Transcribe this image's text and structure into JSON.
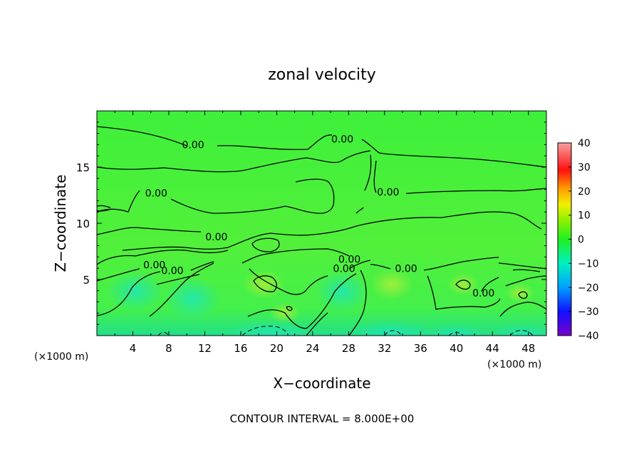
{
  "chart_data": {
    "type": "heatmap",
    "title": "zonal velocity",
    "xlabel": "X−coordinate",
    "ylabel": "Z−coordinate",
    "x_unit_left": "(×1000 m)",
    "x_unit_right": "(×1000 m)",
    "xlim": [
      0,
      50
    ],
    "ylim": [
      0,
      20
    ],
    "x_ticks": [
      4,
      8,
      12,
      16,
      20,
      24,
      28,
      32,
      36,
      40,
      44,
      48
    ],
    "x_tick_labels": [
      "4",
      "8",
      "12",
      "16",
      "20",
      "24",
      "28",
      "32",
      "36",
      "40",
      "44",
      "48"
    ],
    "y_ticks": [
      5,
      10,
      15
    ],
    "y_tick_labels": [
      "5",
      "10",
      "15"
    ],
    "colorbar": {
      "min": -40,
      "max": 40,
      "ticks": [
        40,
        30,
        20,
        10,
        0,
        -10,
        -20,
        -30,
        -40
      ],
      "tick_labels": [
        "40",
        "30",
        "20",
        "10",
        "0",
        "−10",
        "−20",
        "−30",
        "−40"
      ]
    },
    "contour_labels": [
      {
        "text": "0.00",
        "x": 10.7,
        "z": 16.8
      },
      {
        "text": "0.00",
        "x": 27.3,
        "z": 17.3
      },
      {
        "text": "0.00",
        "x": 6.6,
        "z": 12.5
      },
      {
        "text": "0.00",
        "x": 32.4,
        "z": 12.6
      },
      {
        "text": "0.00",
        "x": 13.3,
        "z": 8.6
      },
      {
        "text": "0.00",
        "x": 6.4,
        "z": 6.1
      },
      {
        "text": "0.00",
        "x": 8.4,
        "z": 5.6
      },
      {
        "text": "0.00",
        "x": 28.1,
        "z": 6.6
      },
      {
        "text": "0.00",
        "x": 27.5,
        "z": 5.8
      },
      {
        "text": "0.00",
        "x": 34.4,
        "z": 5.8
      },
      {
        "text": "0.00",
        "x": 43.0,
        "z": 3.6
      }
    ],
    "contour_interval": "CONTOUR INTERVAL = 8.000E+00"
  }
}
